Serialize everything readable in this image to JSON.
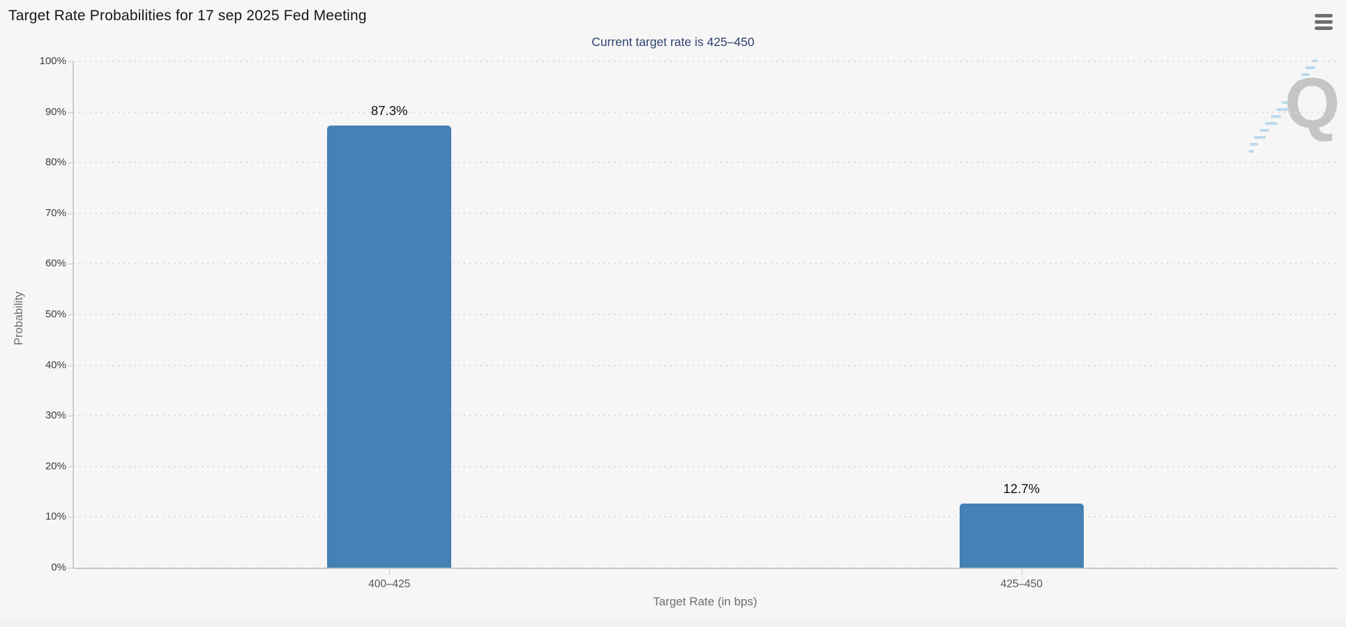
{
  "header": {
    "title": "Target Rate Probabilities for 17 sep 2025 Fed Meeting",
    "menu_tooltip": "Chart context menu"
  },
  "chart_data": {
    "type": "bar",
    "title": "Target Rate Probabilities for 17 sep 2025 Fed Meeting",
    "subtitle": "Current target rate is 425–450",
    "categories": [
      "400–425",
      "425–450"
    ],
    "values": [
      87.3,
      12.7
    ],
    "value_labels": [
      "87.3%",
      "12.7%"
    ],
    "xlabel": "Target Rate (in bps)",
    "ylabel": "Probability",
    "ylim": [
      0,
      100
    ],
    "ytick_step": 10,
    "ytick_labels": [
      "0%",
      "10%",
      "20%",
      "30%",
      "40%",
      "50%",
      "60%",
      "70%",
      "80%",
      "90%",
      "100%"
    ],
    "grid": "horizontal-dotted",
    "legend_position": "none",
    "bar_color": "#4581b4"
  },
  "watermark": {
    "letter": "Q",
    "name": "quikstrike-logo"
  },
  "colors": {
    "subtitle_text": "#31426f",
    "bar_fill": "#4581b4",
    "background": "#f6f6f7",
    "gridline": "#d7d7d8",
    "watermark_gray": "#c5c5c6",
    "watermark_blue": "#bcdaee"
  }
}
